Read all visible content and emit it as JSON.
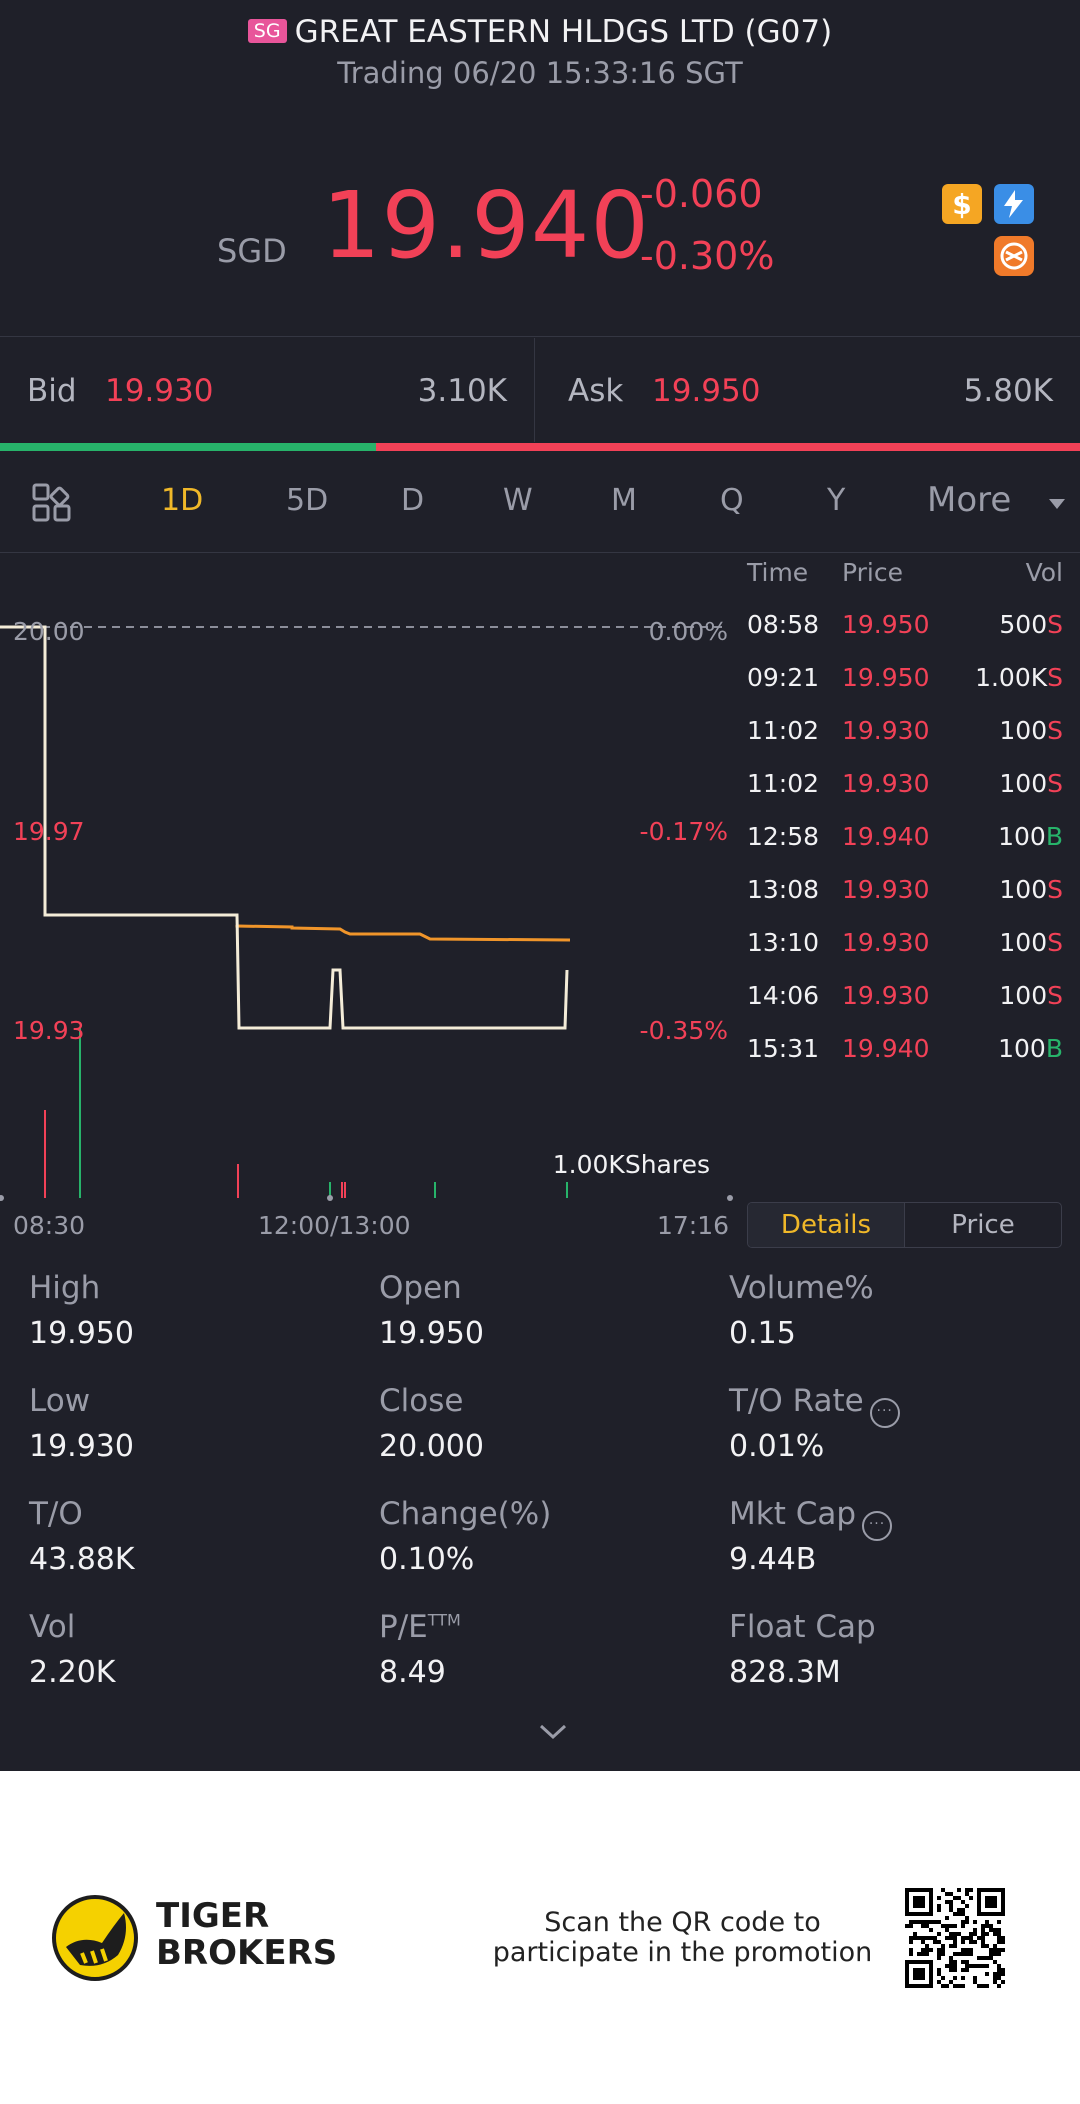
{
  "header": {
    "exchange_badge": "SG",
    "title": "GREAT EASTERN HLDGS LTD (G07)",
    "status": "Trading 06/20 15:33:16 SGT"
  },
  "quote": {
    "currency": "SGD",
    "price": "19.940",
    "change": "-0.060",
    "change_pct": "-0.30%",
    "icons": [
      "dollar-icon",
      "flash-icon",
      "tiger-icon"
    ]
  },
  "bidask": {
    "bid_label": "Bid",
    "bid_price": "19.930",
    "bid_size": "3.10K",
    "ask_label": "Ask",
    "ask_price": "19.950",
    "ask_size": "5.80K",
    "bid_fraction": 0.348
  },
  "tabs": {
    "items": [
      "1D",
      "5D",
      "D",
      "W",
      "M",
      "Q",
      "Y"
    ],
    "active": "1D",
    "more": "More"
  },
  "chart": {
    "price_labels": [
      "20.00",
      "19.97",
      "19.93"
    ],
    "pct_labels": [
      "0.00%",
      "-0.17%",
      "-0.35%"
    ],
    "volume_label": "1.00KShares",
    "time_labels": [
      "08:30",
      "12:00/13:00",
      "17:16"
    ],
    "colors": {
      "price": "#f4ecd8",
      "avg": "#f0952a",
      "down": "#f24157",
      "up": "#27b36a"
    }
  },
  "ticks": {
    "headers": [
      "Time",
      "Price",
      "Vol"
    ],
    "rows": [
      {
        "time": "08:58",
        "price": "19.950",
        "vol": "500",
        "side": "S"
      },
      {
        "time": "09:21",
        "price": "19.950",
        "vol": "1.00K",
        "side": "S"
      },
      {
        "time": "11:02",
        "price": "19.930",
        "vol": "100",
        "side": "S"
      },
      {
        "time": "11:02",
        "price": "19.930",
        "vol": "100",
        "side": "S"
      },
      {
        "time": "12:58",
        "price": "19.940",
        "vol": "100",
        "side": "B"
      },
      {
        "time": "13:08",
        "price": "19.930",
        "vol": "100",
        "side": "S"
      },
      {
        "time": "13:10",
        "price": "19.930",
        "vol": "100",
        "side": "S"
      },
      {
        "time": "14:06",
        "price": "19.930",
        "vol": "100",
        "side": "S"
      },
      {
        "time": "15:31",
        "price": "19.940",
        "vol": "100",
        "side": "B"
      }
    ]
  },
  "toggle": {
    "details": "Details",
    "price": "Price"
  },
  "stats": {
    "high_label": "High",
    "high": "19.950",
    "open_label": "Open",
    "open": "19.950",
    "volpct_label": "Volume%",
    "volpct": "0.15",
    "low_label": "Low",
    "low": "19.930",
    "close_label": "Close",
    "close": "20.000",
    "torate_label": "T/O Rate",
    "torate": "0.01%",
    "to_label": "T/O",
    "to": "43.88K",
    "changepct_label": "Change(%)",
    "changepct": "0.10%",
    "mktcap_label": "Mkt Cap",
    "mktcap": "9.44B",
    "vol_label": "Vol",
    "vol": "2.20K",
    "pe_label": "P/E",
    "pe_sup": "TTM",
    "pe": "8.49",
    "floatcap_label": "Float Cap",
    "floatcap": "828.3M"
  },
  "footer": {
    "brand_line1": "TIGER",
    "brand_line2": "BROKERS",
    "promo": "Scan the QR code to participate in the promotion"
  }
}
